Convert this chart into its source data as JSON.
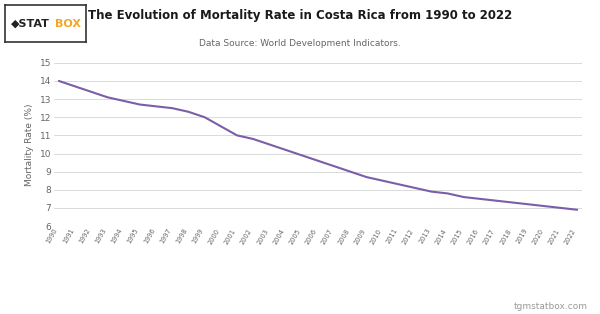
{
  "title": "The Evolution of Mortality Rate in Costa Rica from 1990 to 2022",
  "subtitle": "Data Source: World Development Indicators.",
  "ylabel": "Mortality Rate (%)",
  "legend_label": "Costa Rica",
  "watermark": "tgmstatbox.com",
  "line_color": "#7b5ea7",
  "background_color": "#ffffff",
  "grid_color": "#cccccc",
  "tick_color": "#666666",
  "ylim": [
    6,
    15
  ],
  "yticks": [
    6,
    7,
    8,
    9,
    10,
    11,
    12,
    13,
    14,
    15
  ],
  "years": [
    1990,
    1991,
    1992,
    1993,
    1994,
    1995,
    1996,
    1997,
    1998,
    1999,
    2000,
    2001,
    2002,
    2003,
    2004,
    2005,
    2006,
    2007,
    2008,
    2009,
    2010,
    2011,
    2012,
    2013,
    2014,
    2015,
    2016,
    2017,
    2018,
    2019,
    2020,
    2021,
    2022
  ],
  "values": [
    14.0,
    13.7,
    13.4,
    13.1,
    12.9,
    12.7,
    12.6,
    12.5,
    12.3,
    12.0,
    11.5,
    11.0,
    10.8,
    10.5,
    10.2,
    9.9,
    9.6,
    9.3,
    9.0,
    8.7,
    8.5,
    8.3,
    8.1,
    7.9,
    7.8,
    7.6,
    7.5,
    7.4,
    7.3,
    7.2,
    7.1,
    7.0,
    6.9
  ],
  "logo_text1": "◆STAT",
  "logo_text2": "BOX",
  "logo_color1": "#222222",
  "logo_color2": "#f5a623",
  "logo_border_color": "#333333"
}
